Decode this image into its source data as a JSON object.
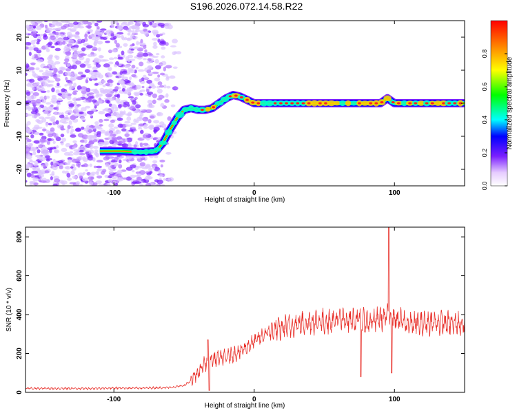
{
  "title": "S196.2026.072.14.58.R22",
  "chart_data": [
    {
      "type": "heatmap",
      "description_label": "spectrogram",
      "xlabel": "Height of straight line (km)",
      "ylabel": "Frequency (Hz)",
      "xlim": [
        -163,
        150
      ],
      "ylim": [
        -25,
        25
      ],
      "xticks": [
        -100,
        0,
        100
      ],
      "xtick_labels": [
        "-100",
        "0",
        "100"
      ],
      "yticks": [
        -20,
        -10,
        0,
        10,
        20
      ],
      "ytick_labels": [
        "-20",
        "-10",
        "0",
        "10",
        "20"
      ],
      "ridge": {
        "x": [
          -110,
          -95,
          -80,
          -70,
          -65,
          -60,
          -55,
          -50,
          -45,
          -40,
          -35,
          -30,
          -25,
          -20,
          -15,
          -10,
          -5,
          0,
          10,
          20,
          40,
          60,
          80,
          90,
          95,
          100,
          120,
          150
        ],
        "y": [
          -14.5,
          -14.5,
          -14.8,
          -14.5,
          -12,
          -8,
          -4.5,
          -2,
          -1.5,
          -2,
          -2,
          -1.5,
          0,
          1.5,
          2.5,
          2,
          1,
          0,
          0,
          0,
          0,
          0,
          0,
          0,
          1.5,
          0,
          0,
          0
        ]
      },
      "noise_region_x": [
        -163,
        -52
      ],
      "colorbar": {
        "label": "Normalized spectral amplitude",
        "range": [
          0,
          1
        ],
        "ticks": [
          0.0,
          0.2,
          0.4,
          0.6,
          0.8
        ],
        "tick_labels": [
          "0.0",
          "0.2",
          "0.4",
          "0.6",
          "0.8"
        ]
      }
    },
    {
      "type": "line",
      "description_label": "snr",
      "xlabel": "Height of straight line (km)",
      "ylabel": "SNR (10 * v/v)",
      "xlim": [
        -163,
        150
      ],
      "ylim": [
        0,
        850
      ],
      "xticks": [
        -100,
        0,
        100
      ],
      "xtick_labels": [
        "-100",
        "0",
        "100"
      ],
      "yticks": [
        0,
        200,
        400,
        600,
        800
      ],
      "ytick_labels": [
        "0",
        "200",
        "400",
        "600",
        "800"
      ],
      "color": "#e8302a",
      "series": [
        {
          "name": "SNR",
          "x": [
            -163,
            -140,
            -120,
            -100,
            -80,
            -60,
            -50,
            -45,
            -40,
            -35,
            -30,
            -20,
            -10,
            0,
            10,
            20,
            30,
            40,
            60,
            75,
            80,
            90,
            95,
            100,
            110,
            120,
            130,
            140,
            150
          ],
          "y": [
            20,
            20,
            20,
            22,
            22,
            25,
            35,
            60,
            100,
            150,
            170,
            180,
            210,
            260,
            310,
            330,
            350,
            360,
            370,
            375,
            360,
            380,
            390,
            380,
            350,
            355,
            360,
            355,
            350
          ],
          "spikes": [
            {
              "x": -33,
              "y": 270
            },
            {
              "x": -32,
              "y": 10
            },
            {
              "x": 76,
              "y": 80
            },
            {
              "x": 96,
              "y": 860
            },
            {
              "x": 98,
              "y": 100
            }
          ]
        }
      ]
    }
  ]
}
